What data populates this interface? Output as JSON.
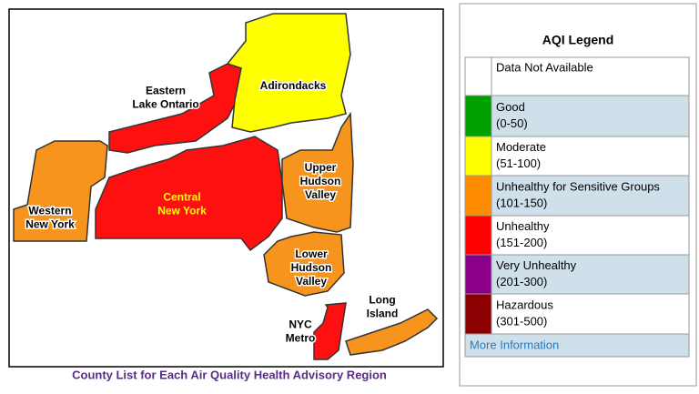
{
  "map": {
    "regions": [
      {
        "lines": [
          "Eastern",
          "Lake Ontario"
        ]
      },
      {
        "lines": [
          "Adirondacks"
        ]
      },
      {
        "lines": [
          "Western",
          "New York"
        ]
      },
      {
        "lines": [
          "Central",
          "New York"
        ]
      },
      {
        "lines": [
          "Upper",
          "Hudson",
          "Valley"
        ]
      },
      {
        "lines": [
          "Lower",
          "Hudson",
          "Valley"
        ]
      },
      {
        "lines": [
          "NYC",
          "Metro"
        ]
      },
      {
        "lines": [
          "Long",
          "Island"
        ]
      }
    ],
    "caption": "County List for Each Air Quality Health Advisory Region"
  },
  "legend": {
    "title": "AQI Legend",
    "rows": [
      {
        "category": "Data Not Available",
        "swatch": "#ffffff"
      },
      {
        "category": "Good",
        "range": "(0-50)",
        "swatch": "#00a000"
      },
      {
        "category": "Moderate",
        "range": "(51-100)",
        "swatch": "#ffff00"
      },
      {
        "category": "Unhealthy for Sensitive Groups",
        "range": "(101-150)",
        "swatch": "#ff8c00"
      },
      {
        "category": "Unhealthy",
        "range": "(151-200)",
        "swatch": "#ff0000"
      },
      {
        "category": "Very Unhealthy",
        "range": "(201-300)",
        "swatch": "#8b008b"
      },
      {
        "category": "Hazardous",
        "range": "(301-500)",
        "swatch": "#8b0000"
      }
    ],
    "link": "More Information"
  }
}
